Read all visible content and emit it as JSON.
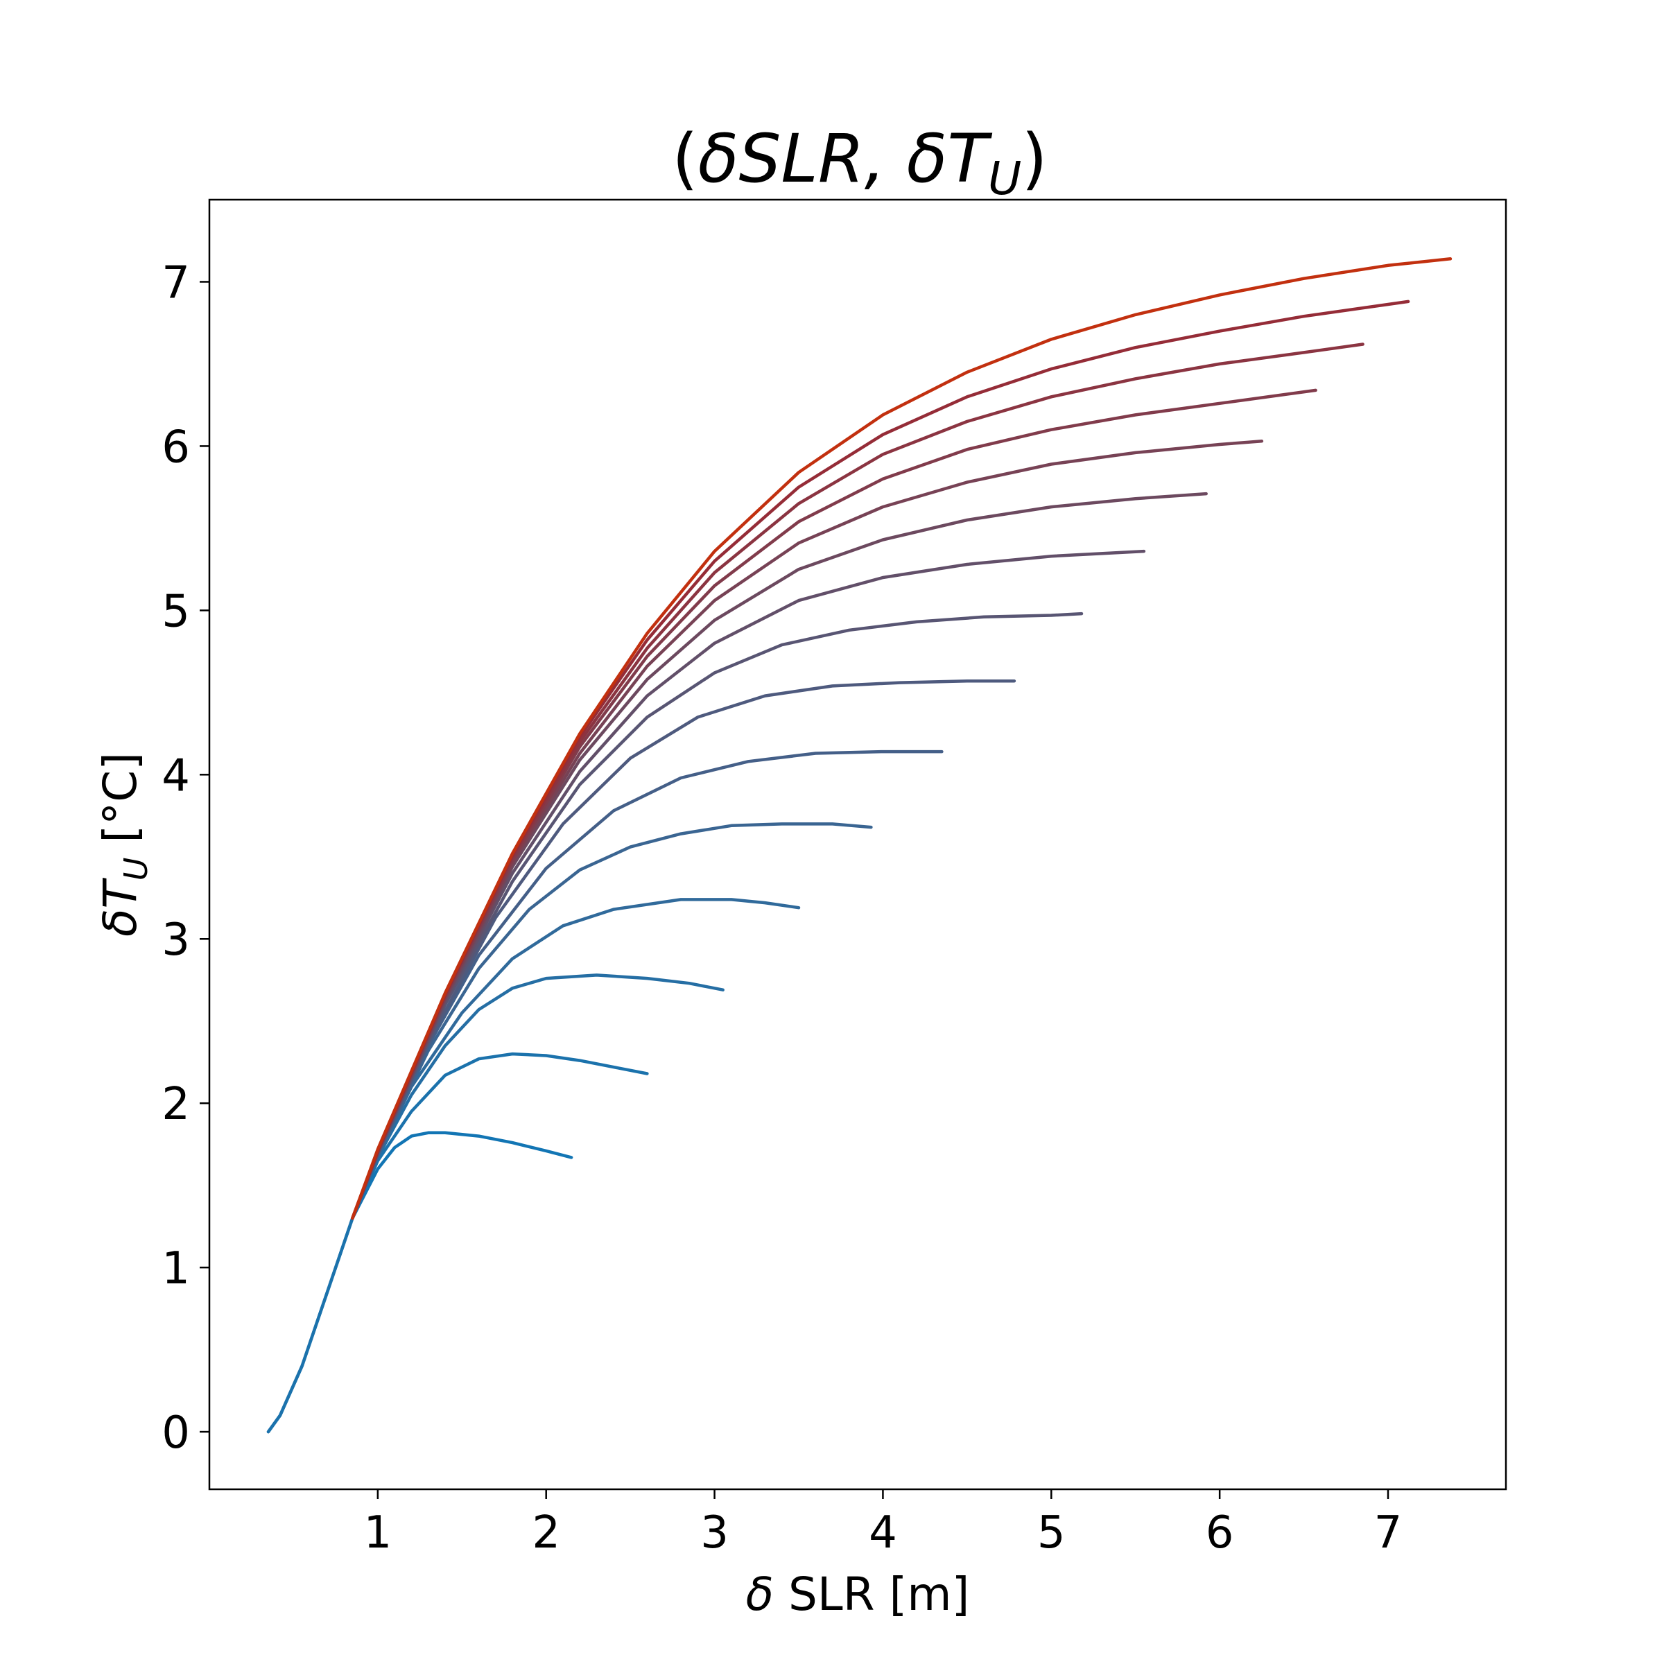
{
  "chart_data": {
    "type": "line",
    "title": "(δSLR, δT_U)",
    "title_parts": {
      "open": "(",
      "slr": "δSLR",
      "sep": ", ",
      "dt": "δT",
      "sub": "U",
      "close": ")"
    },
    "xlabel": "δ SLR [m]",
    "xlabel_parts": {
      "delta": "δ",
      "rest": " SLR [m]"
    },
    "ylabel": "δT_U [°C]",
    "ylabel_parts": {
      "dt": "δT",
      "sub": "U",
      "rest": " [°C]"
    },
    "xlim": [
      -0.0,
      7.7
    ],
    "ylim": [
      -0.35,
      7.5
    ],
    "xticks": [
      1,
      2,
      3,
      4,
      5,
      6,
      7
    ],
    "yticks": [
      0,
      1,
      2,
      3,
      4,
      5,
      6,
      7
    ],
    "grid": false,
    "legend": "none",
    "color_start": "#1f77b4",
    "color_end": "#d62f0a",
    "series": [
      {
        "color": "#1275b4",
        "x": [
          0.35,
          0.42,
          0.55,
          0.7,
          0.85,
          1.0,
          1.1,
          1.2,
          1.3,
          1.4,
          1.6,
          1.8,
          2.0,
          2.15
        ],
        "y": [
          0.0,
          0.1,
          0.4,
          0.85,
          1.3,
          1.6,
          1.73,
          1.8,
          1.82,
          1.82,
          1.8,
          1.76,
          1.71,
          1.67
        ]
      },
      {
        "color": "#1b72ac",
        "x": [
          0.35,
          0.42,
          0.55,
          0.7,
          0.85,
          1.0,
          1.2,
          1.4,
          1.6,
          1.8,
          2.0,
          2.2,
          2.4,
          2.6
        ],
        "y": [
          0.0,
          0.1,
          0.4,
          0.85,
          1.3,
          1.65,
          1.95,
          2.17,
          2.27,
          2.3,
          2.29,
          2.26,
          2.22,
          2.18
        ]
      },
      {
        "color": "#256ea4",
        "x": [
          0.85,
          1.0,
          1.2,
          1.4,
          1.6,
          1.8,
          2.0,
          2.3,
          2.6,
          2.85,
          3.05
        ],
        "y": [
          1.3,
          1.67,
          2.05,
          2.35,
          2.57,
          2.7,
          2.76,
          2.78,
          2.76,
          2.73,
          2.69
        ]
      },
      {
        "color": "#306a9b",
        "x": [
          0.85,
          1.0,
          1.2,
          1.5,
          1.8,
          2.1,
          2.4,
          2.8,
          3.1,
          3.3,
          3.5
        ],
        "y": [
          1.3,
          1.68,
          2.1,
          2.55,
          2.88,
          3.08,
          3.18,
          3.24,
          3.24,
          3.22,
          3.19
        ]
      },
      {
        "color": "#3a6592",
        "x": [
          0.85,
          1.0,
          1.3,
          1.6,
          1.9,
          2.2,
          2.5,
          2.8,
          3.1,
          3.4,
          3.7,
          3.93
        ],
        "y": [
          1.3,
          1.68,
          2.32,
          2.82,
          3.18,
          3.42,
          3.56,
          3.64,
          3.69,
          3.7,
          3.7,
          3.68
        ]
      },
      {
        "color": "#445f88",
        "x": [
          0.85,
          1.0,
          1.3,
          1.6,
          2.0,
          2.4,
          2.8,
          3.2,
          3.6,
          4.0,
          4.35
        ],
        "y": [
          1.3,
          1.69,
          2.35,
          2.9,
          3.43,
          3.78,
          3.98,
          4.08,
          4.13,
          4.14,
          4.14
        ]
      },
      {
        "color": "#4e5a7e",
        "x": [
          0.85,
          1.0,
          1.3,
          1.7,
          2.1,
          2.5,
          2.9,
          3.3,
          3.7,
          4.1,
          4.5,
          4.78
        ],
        "y": [
          1.3,
          1.69,
          2.37,
          3.13,
          3.7,
          4.1,
          4.35,
          4.48,
          4.54,
          4.56,
          4.57,
          4.57
        ]
      },
      {
        "color": "#585573",
        "x": [
          0.85,
          1.0,
          1.4,
          1.8,
          2.2,
          2.6,
          3.0,
          3.4,
          3.8,
          4.2,
          4.6,
          5.0,
          5.18
        ],
        "y": [
          1.3,
          1.7,
          2.6,
          3.35,
          3.94,
          4.35,
          4.62,
          4.79,
          4.88,
          4.93,
          4.96,
          4.97,
          4.98
        ]
      },
      {
        "color": "#624f69",
        "x": [
          0.85,
          1.0,
          1.4,
          1.8,
          2.2,
          2.6,
          3.0,
          3.5,
          4.0,
          4.5,
          5.0,
          5.55
        ],
        "y": [
          1.3,
          1.7,
          2.62,
          3.4,
          4.02,
          4.48,
          4.8,
          5.06,
          5.2,
          5.28,
          5.33,
          5.36
        ]
      },
      {
        "color": "#6c495f",
        "x": [
          0.85,
          1.0,
          1.4,
          1.8,
          2.2,
          2.6,
          3.0,
          3.5,
          4.0,
          4.5,
          5.0,
          5.5,
          5.92
        ],
        "y": [
          1.3,
          1.7,
          2.63,
          3.44,
          4.09,
          4.58,
          4.94,
          5.25,
          5.43,
          5.55,
          5.63,
          5.68,
          5.71
        ]
      },
      {
        "color": "#774255",
        "x": [
          0.85,
          1.0,
          1.4,
          1.8,
          2.2,
          2.6,
          3.0,
          3.5,
          4.0,
          4.5,
          5.0,
          5.5,
          6.0,
          6.25
        ],
        "y": [
          1.3,
          1.7,
          2.64,
          3.46,
          4.13,
          4.66,
          5.06,
          5.41,
          5.63,
          5.78,
          5.89,
          5.96,
          6.01,
          6.03
        ]
      },
      {
        "color": "#813b4b",
        "x": [
          0.85,
          1.0,
          1.4,
          1.8,
          2.2,
          2.6,
          3.0,
          3.5,
          4.0,
          4.5,
          5.0,
          5.5,
          6.0,
          6.57
        ],
        "y": [
          1.3,
          1.71,
          2.65,
          3.48,
          4.17,
          4.72,
          5.15,
          5.54,
          5.8,
          5.98,
          6.1,
          6.19,
          6.26,
          6.34
        ]
      },
      {
        "color": "#8b3441",
        "x": [
          0.85,
          1.0,
          1.4,
          1.8,
          2.2,
          2.6,
          3.0,
          3.5,
          4.0,
          4.5,
          5.0,
          5.5,
          6.0,
          6.5,
          6.85
        ],
        "y": [
          1.3,
          1.71,
          2.66,
          3.5,
          4.2,
          4.77,
          5.23,
          5.65,
          5.95,
          6.15,
          6.3,
          6.41,
          6.5,
          6.57,
          6.62
        ]
      },
      {
        "color": "#952c37",
        "x": [
          0.85,
          1.0,
          1.4,
          1.8,
          2.2,
          2.6,
          3.0,
          3.5,
          4.0,
          4.5,
          5.0,
          5.5,
          6.0,
          6.5,
          7.12
        ],
        "y": [
          1.3,
          1.71,
          2.66,
          3.51,
          4.23,
          4.82,
          5.3,
          5.75,
          6.07,
          6.3,
          6.47,
          6.6,
          6.7,
          6.79,
          6.88
        ]
      },
      {
        "color": "#c2300f",
        "x": [
          0.85,
          1.0,
          1.4,
          1.8,
          2.2,
          2.6,
          3.0,
          3.5,
          4.0,
          4.5,
          5.0,
          5.5,
          6.0,
          6.5,
          7.0,
          7.37
        ],
        "y": [
          1.3,
          1.72,
          2.67,
          3.52,
          4.25,
          4.86,
          5.36,
          5.84,
          6.19,
          6.45,
          6.65,
          6.8,
          6.92,
          7.02,
          7.1,
          7.14
        ]
      }
    ]
  }
}
